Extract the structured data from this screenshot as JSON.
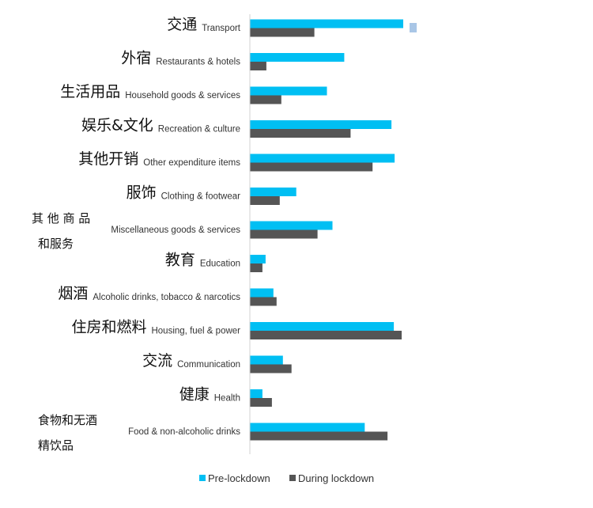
{
  "chart_data": {
    "type": "bar",
    "orientation": "horizontal",
    "categories": [
      {
        "zh": "交通",
        "en": "Transport"
      },
      {
        "zh": "外宿",
        "en": "Restaurants & hotels"
      },
      {
        "zh": "生活用品",
        "en": "Household goods & services"
      },
      {
        "zh": "娱乐&文化",
        "en": "Recreation & culture"
      },
      {
        "zh": "其他开销",
        "en": "Other expenditure items"
      },
      {
        "zh": "服饰",
        "en": "Clothing & footwear"
      },
      {
        "zh": [
          "其 他 商 品",
          "和服务"
        ],
        "en": "Miscellaneous goods & services"
      },
      {
        "zh": "教育",
        "en": "Education"
      },
      {
        "zh": "烟酒",
        "en": "Alcoholic drinks, tobacco & narcotics"
      },
      {
        "zh": "住房和燃料",
        "en": "Housing, fuel & power"
      },
      {
        "zh": "交流",
        "en": "Communication"
      },
      {
        "zh": "健康",
        "en": "Health"
      },
      {
        "zh": [
          "食物和无酒",
          "精饮品"
        ],
        "en": "Food & non-alcoholic drinks"
      }
    ],
    "series": [
      {
        "name": "Pre-lockdown",
        "color": "#00BFF3",
        "values": [
          19.5,
          12.0,
          9.8,
          18.0,
          18.4,
          5.9,
          10.5,
          2.0,
          3.0,
          18.3,
          4.2,
          1.6,
          14.6
        ]
      },
      {
        "name": "During lockdown",
        "color": "#555555",
        "values": [
          8.2,
          2.1,
          4.0,
          12.8,
          15.6,
          3.8,
          8.6,
          1.6,
          3.4,
          19.3,
          5.3,
          2.8,
          17.5
        ]
      }
    ],
    "xlim": [
      0,
      20
    ],
    "grid": false,
    "legend_position": "bottom",
    "title": "",
    "xlabel": "",
    "ylabel": ""
  }
}
